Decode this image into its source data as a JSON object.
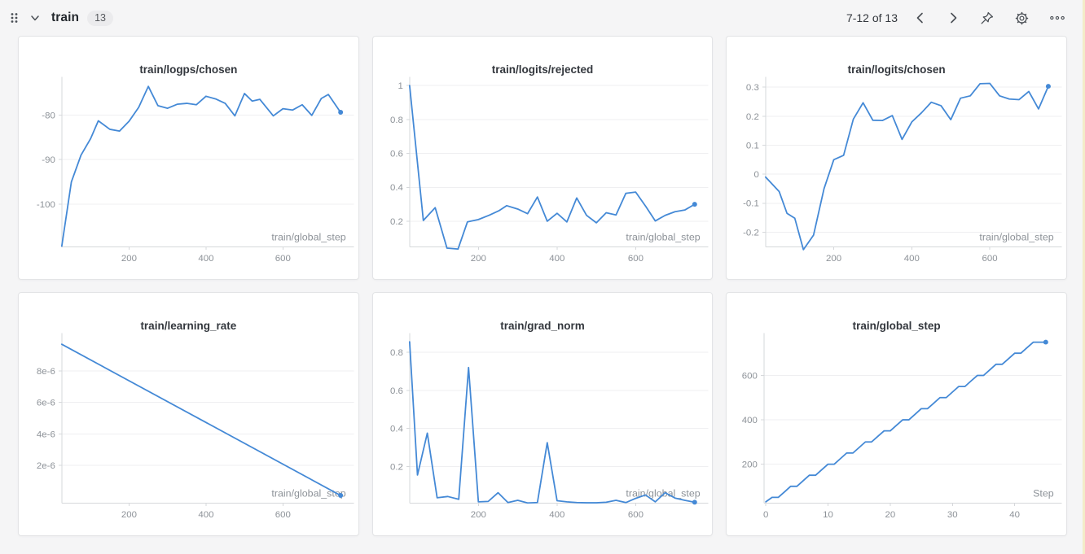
{
  "header": {
    "section_title": "train",
    "panel_count": "13",
    "pagination": "7-12 of 13"
  },
  "colors": {
    "line": "#4489d6",
    "page_bg": "#f5f5f6",
    "panel_border": "#e3e4e6",
    "grid": "#efeff1",
    "axis": "#d6d8db",
    "tick_text": "#8d9298",
    "title_text": "#33373d",
    "icon": "#4a4f55",
    "edge_strip": "#f3ecc8"
  },
  "chart_data": [
    {
      "type": "line",
      "title": "train/logps/chosen",
      "xlabel": "train/global_step",
      "left": 53,
      "xlim": [
        25,
        785
      ],
      "ylim": [
        -109.5,
        -71.5
      ],
      "xticks": [
        200,
        400,
        600
      ],
      "xtick_labels": [
        "200",
        "400",
        "600"
      ],
      "yticks": [
        -100,
        -90,
        -80
      ],
      "ytick_labels": [
        "-100",
        "-90",
        "-80"
      ],
      "x": [
        25,
        50,
        75,
        100,
        120,
        150,
        175,
        200,
        225,
        250,
        275,
        300,
        325,
        350,
        375,
        400,
        425,
        450,
        475,
        500,
        520,
        540,
        575,
        600,
        625,
        650,
        675,
        700,
        718,
        750
      ],
      "y": [
        -109.4,
        -95,
        -89,
        -85.3,
        -81.3,
        -83.2,
        -83.6,
        -81.4,
        -78.3,
        -73.6,
        -77.9,
        -78.5,
        -77.6,
        -77.4,
        -77.7,
        -75.8,
        -76.4,
        -77.4,
        -80.2,
        -75.2,
        -76.9,
        -76.5,
        -80.2,
        -78.6,
        -78.9,
        -77.7,
        -80.1,
        -76.3,
        -75.4,
        -79.4
      ],
      "end_dot": true
    },
    {
      "type": "line",
      "title": "train/logits/rejected",
      "xlabel": "train/global_step",
      "left": 45,
      "xlim": [
        25,
        785
      ],
      "ylim": [
        0.05,
        1.05
      ],
      "xticks": [
        200,
        400,
        600
      ],
      "xtick_labels": [
        "200",
        "400",
        "600"
      ],
      "yticks": [
        0.2,
        0.4,
        0.6,
        0.8,
        1
      ],
      "ytick_labels": [
        "0.2",
        "0.4",
        "0.6",
        "0.8",
        "1"
      ],
      "x": [
        25,
        60,
        90,
        120,
        148,
        172,
        200,
        228,
        252,
        272,
        300,
        325,
        350,
        375,
        400,
        425,
        450,
        475,
        500,
        525,
        550,
        575,
        600,
        625,
        650,
        675,
        700,
        725,
        750
      ],
      "y": [
        1.0,
        0.205,
        0.28,
        0.042,
        0.036,
        0.196,
        0.21,
        0.236,
        0.262,
        0.292,
        0.272,
        0.245,
        0.343,
        0.2,
        0.247,
        0.196,
        0.337,
        0.235,
        0.191,
        0.25,
        0.237,
        0.365,
        0.372,
        0.29,
        0.202,
        0.235,
        0.256,
        0.266,
        0.3
      ],
      "end_dot": true
    },
    {
      "type": "line",
      "title": "train/logits/chosen",
      "xlabel": "train/global_step",
      "left": 48,
      "xlim": [
        25,
        785
      ],
      "ylim": [
        -0.25,
        0.335
      ],
      "xticks": [
        200,
        400,
        600
      ],
      "xtick_labels": [
        "200",
        "400",
        "600"
      ],
      "yticks": [
        -0.2,
        -0.1,
        0,
        0.1,
        0.2,
        0.3
      ],
      "ytick_labels": [
        "-0.2",
        "-0.1",
        "0",
        "0.1",
        "0.2",
        "0.3"
      ],
      "x": [
        25,
        60,
        80,
        100,
        122,
        148,
        175,
        200,
        225,
        250,
        275,
        300,
        325,
        350,
        375,
        400,
        425,
        450,
        475,
        500,
        525,
        550,
        575,
        600,
        625,
        650,
        675,
        700,
        725,
        750
      ],
      "y": [
        -0.01,
        -0.06,
        -0.135,
        -0.152,
        -0.26,
        -0.21,
        -0.05,
        0.05,
        0.065,
        0.19,
        0.246,
        0.186,
        0.185,
        0.202,
        0.12,
        0.18,
        0.212,
        0.248,
        0.236,
        0.188,
        0.262,
        0.27,
        0.312,
        0.313,
        0.27,
        0.259,
        0.257,
        0.285,
        0.225,
        0.303
      ],
      "end_dot": true
    },
    {
      "type": "line",
      "title": "train/learning_rate",
      "xlabel": "train/global_step",
      "left": 53,
      "xlim": [
        25,
        785
      ],
      "ylim": [
        -4e-07,
        1.04e-05
      ],
      "xticks": [
        200,
        400,
        600
      ],
      "xtick_labels": [
        "200",
        "400",
        "600"
      ],
      "yticks": [
        2e-06,
        4e-06,
        6e-06,
        8e-06
      ],
      "ytick_labels": [
        "2e-6",
        "4e-6",
        "6e-6",
        "8e-6"
      ],
      "x": [
        25,
        750
      ],
      "y": [
        9.7e-06,
        8e-08
      ],
      "end_dot": true
    },
    {
      "type": "line",
      "title": "train/grad_norm",
      "xlabel": "train/global_step",
      "left": 45,
      "xlim": [
        25,
        785
      ],
      "ylim": [
        0.008,
        0.9
      ],
      "xticks": [
        200,
        400,
        600
      ],
      "xtick_labels": [
        "200",
        "400",
        "600"
      ],
      "yticks": [
        0.2,
        0.4,
        0.6,
        0.8
      ],
      "ytick_labels": [
        "0.2",
        "0.4",
        "0.6",
        "0.8"
      ],
      "x": [
        25,
        45,
        70,
        95,
        122,
        150,
        175,
        200,
        225,
        250,
        275,
        300,
        325,
        350,
        375,
        400,
        425,
        450,
        475,
        500,
        525,
        550,
        575,
        600,
        625,
        650,
        675,
        700,
        725,
        750
      ],
      "y": [
        0.855,
        0.155,
        0.375,
        0.035,
        0.042,
        0.027,
        0.72,
        0.014,
        0.016,
        0.062,
        0.01,
        0.022,
        0.008,
        0.01,
        0.325,
        0.02,
        0.014,
        0.01,
        0.009,
        0.009,
        0.012,
        0.022,
        0.01,
        0.032,
        0.05,
        0.014,
        0.062,
        0.034,
        0.022,
        0.012
      ],
      "end_dot": true
    },
    {
      "type": "line",
      "title": "train/global_step",
      "xlabel": "Step",
      "left": 46,
      "xlim": [
        -0.3,
        47.6
      ],
      "ylim": [
        25,
        790
      ],
      "xticks": [
        0,
        10,
        20,
        30,
        40
      ],
      "xtick_labels": [
        "0",
        "10",
        "20",
        "30",
        "40"
      ],
      "yticks": [
        200,
        400,
        600
      ],
      "ytick_labels": [
        "200",
        "400",
        "600"
      ],
      "x": [
        0,
        1,
        2,
        3,
        4,
        5,
        6,
        7,
        8,
        9,
        10,
        11,
        12,
        13,
        14,
        15,
        16,
        17,
        18,
        19,
        20,
        21,
        22,
        23,
        24,
        25,
        26,
        27,
        28,
        29,
        30,
        31,
        32,
        33,
        34,
        35,
        36,
        37,
        38,
        39,
        40,
        41,
        42,
        43,
        44,
        45
      ],
      "y": [
        30,
        50,
        50,
        75,
        100,
        100,
        125,
        150,
        150,
        175,
        200,
        200,
        225,
        250,
        250,
        275,
        300,
        300,
        325,
        350,
        350,
        375,
        400,
        400,
        425,
        450,
        450,
        475,
        500,
        500,
        525,
        550,
        550,
        575,
        600,
        600,
        625,
        650,
        650,
        675,
        700,
        700,
        725,
        750,
        750,
        750
      ],
      "end_dot": true
    }
  ]
}
